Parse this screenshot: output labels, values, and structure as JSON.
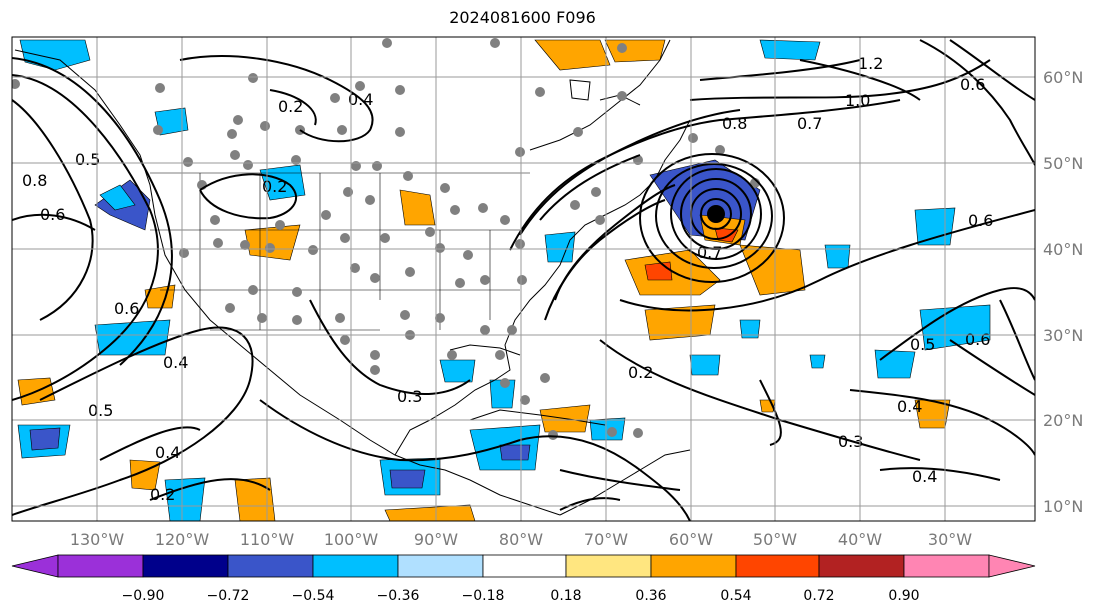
{
  "title": "2024081600 F096",
  "map": {
    "lon_labels": [
      "130°W",
      "120°W",
      "110°W",
      "100°W",
      "90°W",
      "80°W",
      "70°W",
      "60°W",
      "50°W",
      "40°W",
      "30°W"
    ],
    "lat_labels": [
      "60°N",
      "50°N",
      "40°N",
      "30°N",
      "20°N",
      "10°N"
    ],
    "contour_labels": [
      "1.2",
      "1.0",
      "0.8",
      "0.7",
      "0.6",
      "0.5",
      "0.4",
      "0.2",
      "0.3",
      "0.2",
      "0.4",
      "0.5",
      "0.6",
      "0.8",
      "0.2",
      "0.3",
      "0.4",
      "0.6",
      "0.5",
      "0.4",
      "0.6",
      "0.6",
      "0.4",
      "0.2",
      "0.7"
    ],
    "low_center": {
      "lon": -57,
      "lat": 44
    }
  },
  "colorbar": {
    "labels": [
      "−0.90",
      "−0.72",
      "−0.54",
      "−0.36",
      "−0.18",
      "0.18",
      "0.36",
      "0.54",
      "0.72",
      "0.90"
    ],
    "colors": [
      "#9b30d9",
      "#00008b",
      "#3a55c9",
      "#00bfff",
      "#b0e0ff",
      "#ffffff",
      "#ffe680",
      "#ffa500",
      "#ff4500",
      "#b22222",
      "#ff85b3"
    ]
  }
}
